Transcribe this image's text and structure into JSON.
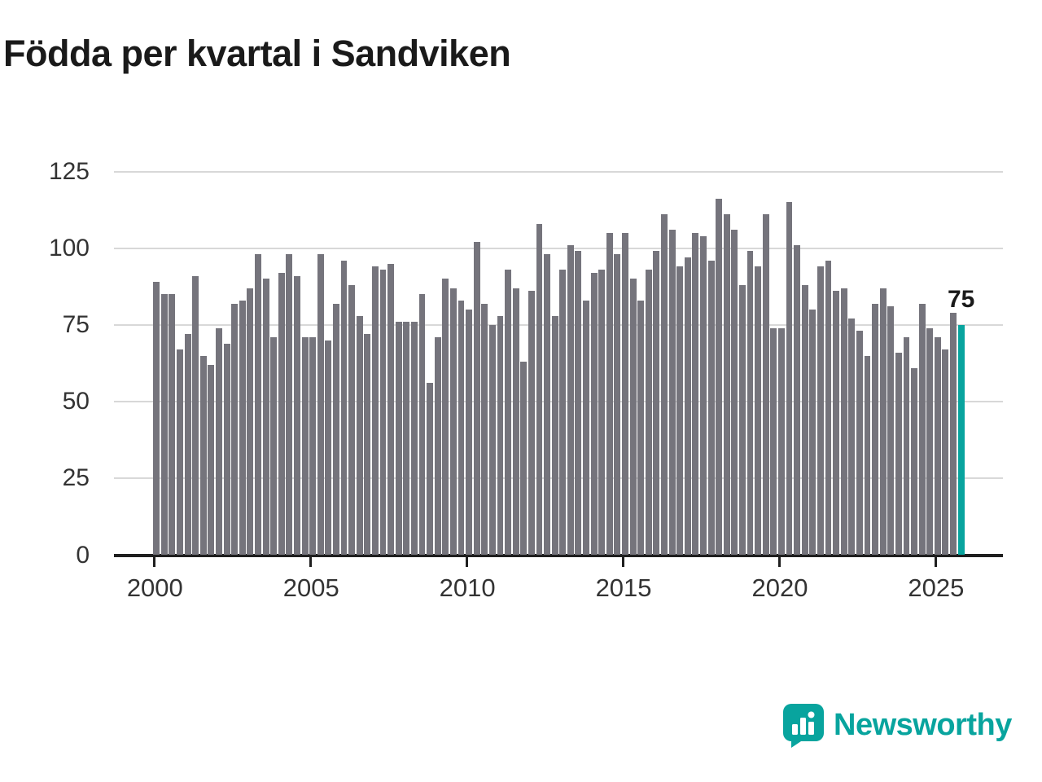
{
  "title": "Födda per kvartal i Sandviken",
  "annotation": {
    "label": "75"
  },
  "logo": {
    "text": "Newsworthy",
    "icon": "newsworthy-bars-icon"
  },
  "colors": {
    "bar": "#75747c",
    "highlight": "#08a49e",
    "grid": "#d8d8d8",
    "axis": "#1f1f1f",
    "tick_text": "#333333",
    "title_text": "#1a1a1a",
    "brand": "#08a49e"
  },
  "chart_data": {
    "type": "bar",
    "title": "Födda per kvartal i Sandviken",
    "xlabel": "",
    "ylabel": "",
    "x_start": {
      "year": 2000,
      "quarter": 1
    },
    "x_end": {
      "year": 2025,
      "quarter": 4
    },
    "x_tick_years": [
      2000,
      2005,
      2010,
      2015,
      2020,
      2025
    ],
    "y_ticks": [
      0,
      25,
      50,
      75,
      100,
      125
    ],
    "ylim": [
      0,
      125
    ],
    "grid": true,
    "legend": "none",
    "series": [
      {
        "name": "Födda per kvartal",
        "values": [
          89,
          85,
          85,
          67,
          72,
          91,
          65,
          62,
          74,
          69,
          82,
          83,
          87,
          98,
          90,
          71,
          92,
          98,
          91,
          71,
          71,
          98,
          70,
          82,
          96,
          88,
          78,
          72,
          94,
          93,
          95,
          76,
          76,
          76,
          85,
          56,
          71,
          90,
          87,
          83,
          80,
          102,
          82,
          75,
          78,
          93,
          87,
          63,
          86,
          108,
          98,
          78,
          93,
          101,
          99,
          83,
          92,
          93,
          105,
          98,
          105,
          90,
          83,
          93,
          99,
          111,
          106,
          94,
          97,
          105,
          104,
          96,
          116,
          111,
          106,
          88,
          99,
          94,
          111,
          74,
          74,
          115,
          101,
          88,
          80,
          94,
          96,
          86,
          87,
          77,
          73,
          65,
          82,
          87,
          81,
          66,
          71,
          61,
          82,
          74,
          71,
          67,
          79,
          75
        ]
      }
    ],
    "highlight": {
      "index": 103,
      "period": "2025 Q4",
      "label": "75"
    }
  }
}
